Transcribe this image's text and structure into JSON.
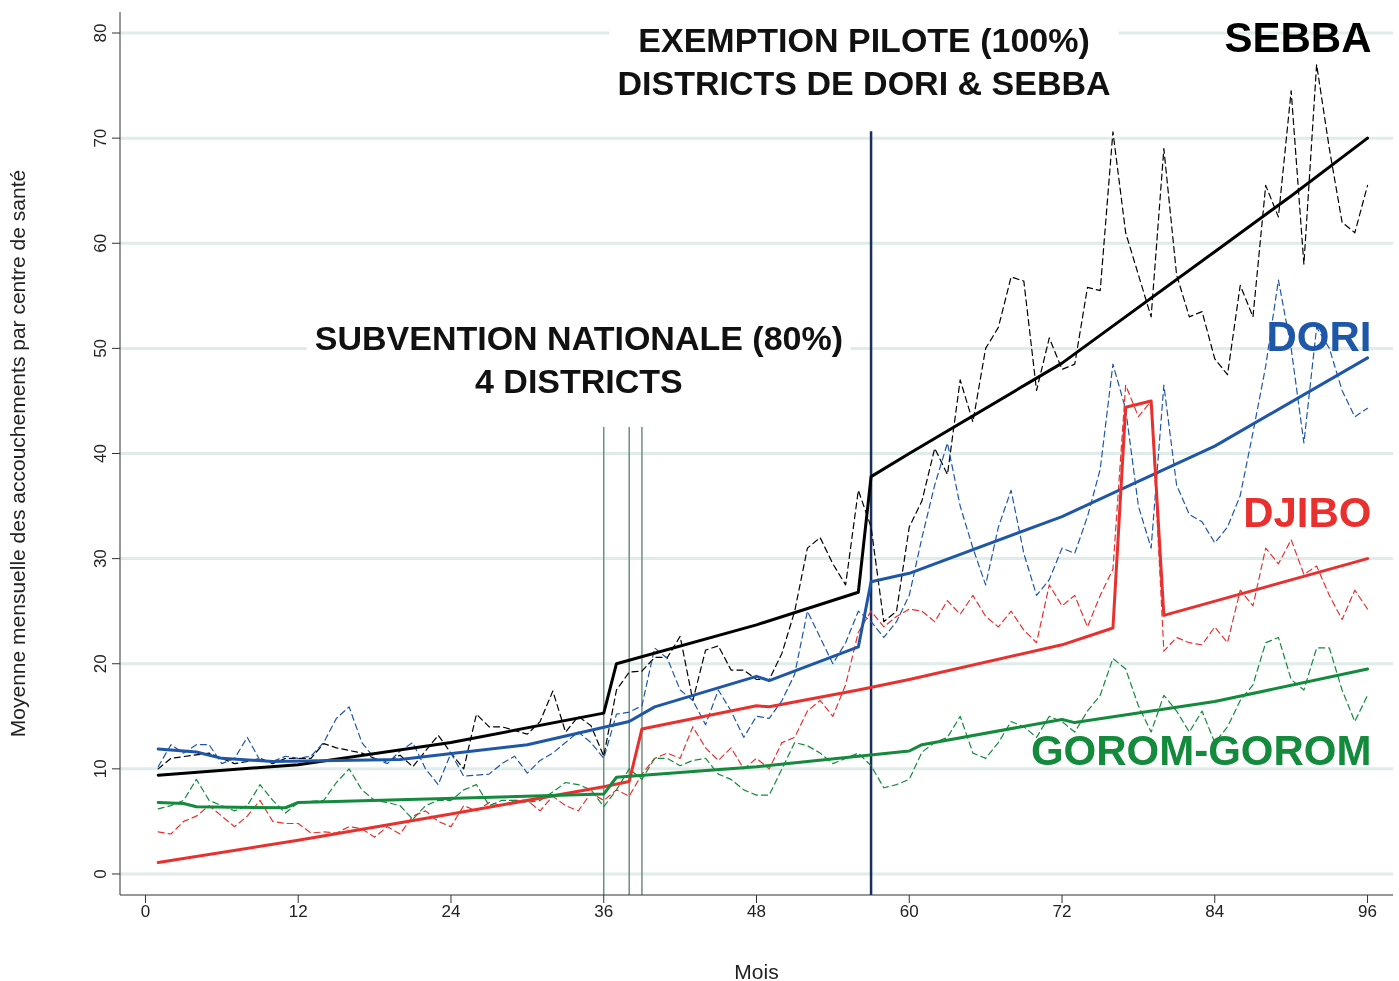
{
  "chart_data": {
    "type": "line",
    "xlabel": "Mois",
    "ylabel": "Moyenne mensuelle des accouchements par centre de santé",
    "xlim": [
      -2,
      98
    ],
    "ylim": [
      -2,
      82
    ],
    "xticks": [
      0,
      12,
      24,
      36,
      48,
      60,
      72,
      84,
      96
    ],
    "yticks": [
      0,
      10,
      20,
      30,
      40,
      50,
      60,
      70,
      80
    ],
    "grid": "y",
    "legend": false,
    "marker": "none",
    "ref_lines": [
      {
        "axis": "x",
        "value": 36,
        "label": null,
        "color": "#6f8f80"
      },
      {
        "axis": "x",
        "value": 38,
        "label": "SUBVENTION NATIONALE (80%)\n4 DISTRICTS",
        "color": "#6f8f80"
      },
      {
        "axis": "x",
        "value": 39,
        "label": null,
        "color": "#6f8f80"
      },
      {
        "axis": "x",
        "value": 57,
        "label": "EXEMPTION PILOTE (100%)\nDISTRICTS DE DORI & SEBBA",
        "color": "#1b2f5e"
      }
    ],
    "series": [
      {
        "color": "#000000",
        "line_style": "dashed",
        "x": [
          1,
          2,
          5,
          7,
          8,
          9,
          10,
          11,
          13,
          14,
          15,
          17,
          18,
          19,
          20,
          21,
          23,
          24,
          25,
          26,
          27,
          28,
          30,
          31,
          32,
          33,
          34,
          35,
          36,
          37,
          38,
          39,
          40,
          41,
          42,
          43,
          44,
          45,
          46,
          47,
          48,
          49,
          50,
          51,
          52,
          53,
          54,
          55,
          56,
          57,
          58,
          59,
          60,
          61,
          62,
          63,
          64,
          65,
          66,
          67,
          68,
          69,
          70,
          71,
          72,
          73,
          74,
          75,
          76,
          77,
          78,
          79,
          80,
          81,
          82,
          83,
          84,
          85,
          86,
          87,
          88,
          89,
          90,
          91,
          92,
          93,
          94,
          95,
          96
        ],
        "values": [
          10,
          11,
          11.5,
          10.5,
          10.7,
          11,
          10.5,
          11,
          11,
          12.4,
          12,
          11.5,
          11,
          10.7,
          11.3,
          10.2,
          13.2,
          11.5,
          10,
          15.2,
          14,
          14,
          13.3,
          14.5,
          17.4,
          13.5,
          15,
          14.1,
          11.2,
          17.5,
          19.2,
          19.3,
          20.6,
          20.6,
          22.6,
          16.5,
          21.3,
          21.7,
          19.4,
          19.4,
          18.5,
          18.5,
          21,
          25,
          31,
          32,
          29.5,
          27.5,
          36.5,
          33,
          24,
          25,
          33,
          35.5,
          40.5,
          38,
          47,
          43,
          50,
          52,
          56.8,
          56.4,
          46,
          51,
          48,
          48.5,
          55.8,
          55.5,
          70.6,
          61,
          57,
          53,
          69,
          57,
          53,
          53.5,
          49,
          47.5,
          56,
          53,
          65.5,
          62.5,
          74.5,
          58,
          77,
          69,
          62,
          61,
          65.5
        ]
      },
      {
        "color": "#1f57a8",
        "line_style": "dashed",
        "x": [
          1,
          2,
          3,
          4,
          5,
          6,
          7,
          8,
          9,
          10,
          11,
          12,
          13,
          14,
          15,
          16,
          17,
          18,
          19,
          20,
          21,
          22,
          23,
          24,
          25,
          26,
          27,
          28,
          29,
          30,
          31,
          32,
          33,
          34,
          35,
          36,
          37,
          38,
          39,
          40,
          41,
          42,
          43,
          44,
          45,
          46,
          47,
          48,
          49,
          50,
          51,
          52,
          53,
          54,
          55,
          56,
          57,
          58,
          59,
          60,
          61,
          62,
          63,
          64,
          65,
          66,
          67,
          68,
          69,
          70,
          71,
          72,
          73,
          74,
          75,
          76,
          77,
          78,
          79,
          80,
          81,
          82,
          83,
          84,
          85,
          86,
          87,
          88,
          89,
          90,
          91,
          92,
          93,
          94,
          95,
          96
        ],
        "values": [
          10.2,
          12.3,
          11.5,
          12.3,
          12.3,
          10.5,
          11,
          13,
          10.8,
          10.7,
          11.2,
          11,
          11.2,
          12.5,
          14.8,
          15.9,
          12.5,
          11,
          10.5,
          11.7,
          12.5,
          10,
          8.5,
          11.5,
          9.3,
          9.4,
          9.5,
          10.5,
          11.2,
          9.6,
          10.8,
          11.5,
          12.5,
          13.5,
          12.5,
          11,
          15.2,
          15.4,
          16,
          21.5,
          20.5,
          17.5,
          16.5,
          14.2,
          17.5,
          15.5,
          13,
          15,
          14.8,
          16.5,
          19,
          25,
          22.5,
          20,
          22,
          25,
          24,
          22.5,
          24,
          26.5,
          32,
          37,
          41,
          35,
          31,
          27.5,
          33,
          36.5,
          30.5,
          26.5,
          28,
          31,
          30.5,
          34,
          38.5,
          48.5,
          44.2,
          35,
          31,
          46.5,
          37,
          34.2,
          33.5,
          31.5,
          33,
          36,
          42,
          48.3,
          56.5,
          50,
          41,
          52,
          50,
          46,
          43.5,
          44.3
        ]
      },
      {
        "color": "#e8312f",
        "line_style": "dashed",
        "x": [
          1,
          2,
          3,
          4,
          5,
          6,
          7,
          8,
          9,
          10,
          11,
          12,
          13,
          14,
          15,
          16,
          17,
          18,
          19,
          20,
          21,
          22,
          23,
          24,
          25,
          26,
          27,
          28,
          29,
          30,
          31,
          32,
          33,
          34,
          35,
          36,
          37,
          38,
          39,
          40,
          41,
          42,
          43,
          44,
          45,
          46,
          47,
          48,
          49,
          50,
          51,
          52,
          53,
          54,
          55,
          56,
          57,
          58,
          59,
          60,
          61,
          62,
          63,
          64,
          65,
          66,
          67,
          68,
          69,
          70,
          71,
          72,
          73,
          74,
          75,
          76,
          77,
          78,
          79,
          80,
          81,
          82,
          83,
          84,
          85,
          86,
          87,
          88,
          89,
          90,
          91,
          92,
          93,
          94,
          95,
          96
        ],
        "values": [
          4,
          3.8,
          5,
          5.5,
          6.5,
          5.5,
          4.5,
          5.5,
          7,
          5,
          4.8,
          4.8,
          3.9,
          4,
          3.9,
          4.5,
          4.3,
          3.5,
          4.5,
          3.8,
          5.5,
          6,
          5,
          4.5,
          6.5,
          6,
          6.8,
          6.5,
          7,
          7,
          6,
          7.4,
          6.5,
          6,
          7.7,
          7,
          8,
          7.4,
          9.5,
          11,
          11.5,
          11,
          14,
          12,
          10.8,
          12,
          10,
          11,
          10,
          12.5,
          13,
          15.5,
          16.5,
          15,
          18,
          23,
          25,
          23.5,
          24.5,
          25.2,
          25,
          24,
          26,
          24.7,
          26.5,
          24.5,
          23.5,
          25,
          23.2,
          22,
          27.5,
          25.5,
          26.5,
          23.5,
          26.5,
          29,
          46.5,
          43.5,
          45,
          21.2,
          22.5,
          22,
          21.8,
          23.5,
          22,
          27,
          25.5,
          31,
          29.5,
          31.8,
          28.5,
          29.3,
          26.5,
          24.2,
          27,
          25.2
        ]
      },
      {
        "color": "#138a3c",
        "line_style": "dashed",
        "x": [
          1,
          2,
          3,
          4,
          5,
          6,
          7,
          8,
          9,
          10,
          11,
          12,
          14,
          15,
          16,
          17,
          18,
          19,
          20,
          21,
          22,
          23,
          24,
          25,
          26,
          27,
          28,
          29,
          30,
          31,
          32,
          33,
          34,
          35,
          36,
          37,
          38,
          39,
          40,
          41,
          42,
          43,
          44,
          45,
          46,
          47,
          48,
          49,
          50,
          51,
          52,
          53,
          54,
          55,
          56,
          57,
          58,
          59,
          60,
          61,
          62,
          63,
          64,
          65,
          66,
          67,
          68,
          69,
          70,
          71,
          72,
          73,
          74,
          75,
          76,
          77,
          78,
          79,
          80,
          81,
          82,
          83,
          84,
          85,
          86,
          87,
          88,
          89,
          90,
          91,
          92,
          93,
          94,
          95,
          96
        ],
        "values": [
          6.2,
          6.5,
          7,
          9,
          7,
          6.5,
          6,
          6.5,
          8.5,
          7,
          5.8,
          6.8,
          7,
          8.7,
          10,
          8,
          7,
          6.8,
          6.5,
          5.2,
          6.5,
          7,
          7,
          8,
          8.5,
          6.5,
          7,
          7,
          6.8,
          7,
          7.8,
          8.7,
          8.5,
          8,
          6.4,
          8,
          10,
          9,
          11,
          11,
          10.3,
          10.8,
          11,
          9.5,
          9,
          8,
          7.5,
          7.5,
          10,
          12.5,
          12.2,
          11.5,
          10.5,
          11,
          11.5,
          10.3,
          8.2,
          8.5,
          9,
          11.6,
          12.5,
          13,
          15,
          11.5,
          11,
          12.5,
          14.5,
          14,
          13,
          15,
          14.5,
          13.5,
          15.5,
          17,
          20.5,
          19.5,
          16,
          13.5,
          17,
          15.5,
          13.5,
          15.5,
          12.5,
          14,
          16.5,
          18,
          22,
          22.5,
          18.5,
          17.5,
          21.5,
          21.5,
          17.5,
          14.5,
          17
        ]
      },
      {
        "name": "SEBBA",
        "color": "#000000",
        "line_style": "solid",
        "x": [
          1,
          12,
          24,
          36,
          37,
          48,
          56,
          57,
          60,
          72,
          84,
          90,
          96
        ],
        "values": [
          9.4,
          10.4,
          12.5,
          15.3,
          20,
          23.7,
          26.8,
          37.8,
          40,
          48.6,
          59.2,
          64.5,
          70
        ]
      },
      {
        "name": "DORI",
        "color": "#1f57a8",
        "line_style": "solid",
        "x": [
          1,
          4,
          6,
          10,
          20,
          30,
          38,
          40,
          48,
          49,
          56,
          57,
          60,
          72,
          84,
          96
        ],
        "values": [
          11.9,
          11.6,
          11,
          10.7,
          10.9,
          12.3,
          14.5,
          15.9,
          18.8,
          18.4,
          21.6,
          27.8,
          28.6,
          34,
          40.7,
          49.1
        ]
      },
      {
        "name": "DJIBO",
        "color": "#e8312f",
        "line_style": "solid",
        "x": [
          1,
          12,
          24,
          36,
          38,
          39,
          48,
          49,
          56,
          60,
          72,
          76,
          77,
          79,
          80,
          96
        ],
        "values": [
          1.1,
          3.2,
          5.7,
          8.3,
          8.8,
          13.8,
          16,
          15.9,
          17.5,
          18.5,
          21.8,
          23.4,
          44.4,
          45,
          24.6,
          30
        ]
      },
      {
        "name": "GOROM-GOROM",
        "color": "#138a3c",
        "line_style": "solid",
        "x": [
          1,
          3,
          4,
          11,
          12,
          36,
          37,
          48,
          60,
          61,
          72,
          73,
          84,
          96
        ],
        "values": [
          6.8,
          6.7,
          6.4,
          6.3,
          6.8,
          7.6,
          9.2,
          10.2,
          11.7,
          12.3,
          14.7,
          14.4,
          16.4,
          19.5
        ]
      }
    ]
  }
}
